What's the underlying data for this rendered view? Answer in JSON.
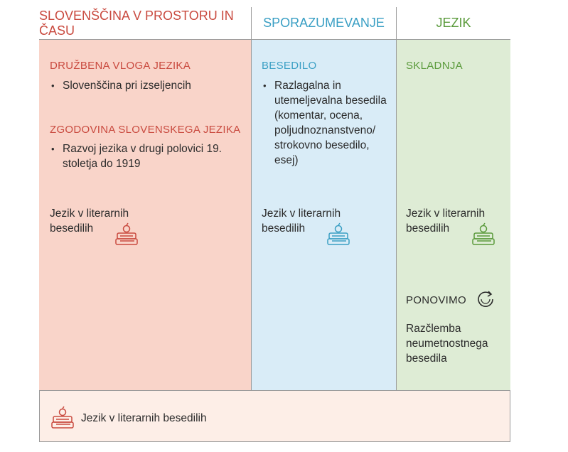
{
  "headers": {
    "col1": "SLOVENŠČINA V PROSTORU IN ČASU",
    "col2": "SPORAZUMEVANJE",
    "col3": "JEZIK"
  },
  "col1": {
    "section1_title": "DRUŽBENA VLOGA JEZIKA",
    "section1_items": [
      "Slovenščina pri izseljencih"
    ],
    "section2_title": "ZGODOVINA SLOVENSKEGA JEZIKA",
    "section2_items": [
      "Razvoj jezika v drugi polovici 19. stoletja do 1919"
    ],
    "literary_line1": "Jezik v literarnih",
    "literary_line2": "besedilih"
  },
  "col2": {
    "section_title": "BESEDILO",
    "items": [
      "Razlagalna in utemeljevalna besedila (komentar, ocena, poljudnoznanstveno/ strokovno besedilo, esej)"
    ],
    "literary_line1": "Jezik v literarnih",
    "literary_line2": "besedilih"
  },
  "col3": {
    "section_title": "SKLADNJA",
    "literary_line1": "Jezik v literarnih",
    "literary_line2": "besedilih",
    "review_label": "PONOVIMO",
    "review_text_1": "Razčlemba",
    "review_text_2": "neumetnostnega",
    "review_text_3": "besedila"
  },
  "footer": {
    "text": "Jezik v literarnih besedilih"
  },
  "colors": {
    "red": "#c94a3f",
    "blue": "#3a9fc4",
    "green": "#5a9a3b"
  },
  "icons": {
    "books": "books-apple-icon",
    "review": "refresh-icon"
  }
}
